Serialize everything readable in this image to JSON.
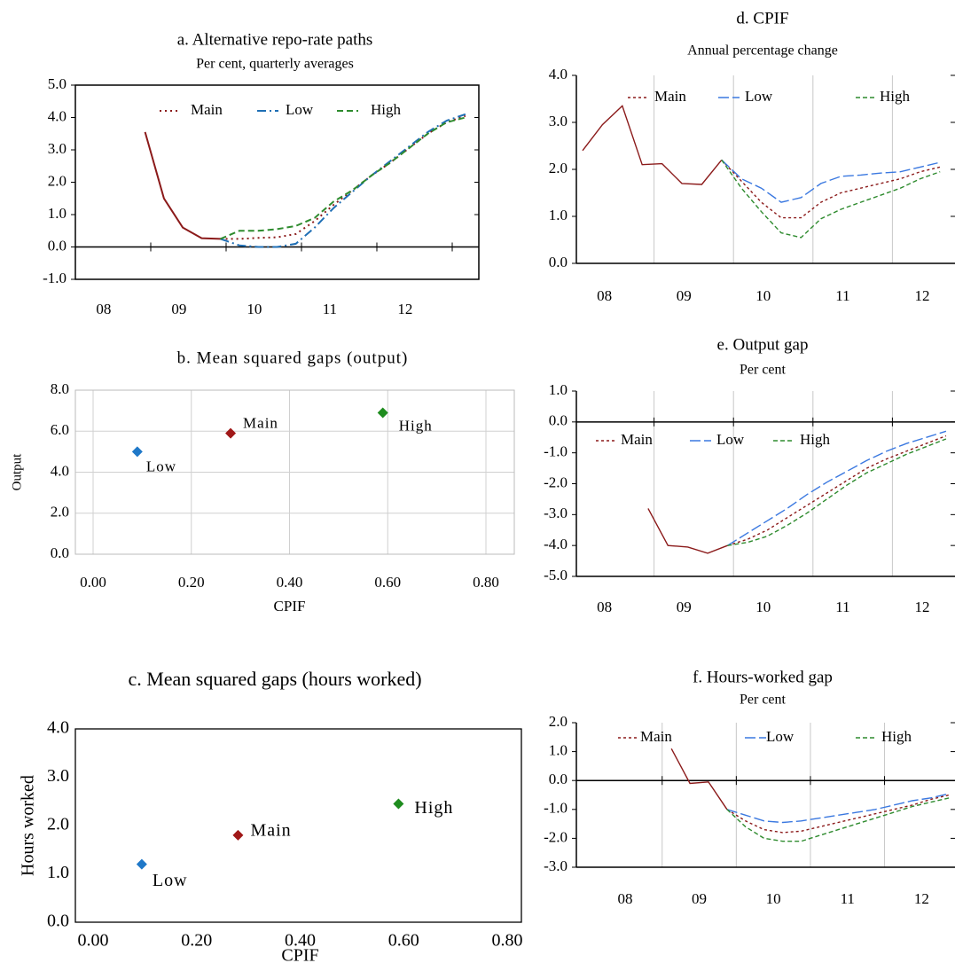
{
  "chart_data": [
    {
      "type": "line",
      "title": "a. Alternative repo-rate paths",
      "subtitle": "Per cent, quarterly averages",
      "categories": [
        null,
        "08",
        null,
        null,
        null,
        "09",
        null,
        null,
        null,
        "10",
        null,
        null,
        null,
        "11",
        null,
        null,
        null,
        "12",
        null,
        null,
        null,
        null
      ],
      "series": [
        {
          "name": "Main",
          "color": "#8b1a1a",
          "values": [
            null,
            null,
            null,
            null,
            3.55,
            1.5,
            0.6,
            0.27,
            0.25,
            0.25,
            0.28,
            0.3,
            0.4,
            0.8,
            1.3,
            1.75,
            2.2,
            2.6,
            3.05,
            3.5,
            3.85,
            4.05
          ]
        },
        {
          "name": "Low",
          "color": "#1f6fb5",
          "values": [
            null,
            null,
            null,
            null,
            null,
            null,
            null,
            null,
            0.25,
            0.05,
            0.0,
            0.0,
            0.1,
            0.6,
            1.2,
            1.7,
            2.2,
            2.65,
            3.1,
            3.55,
            3.9,
            4.1
          ]
        },
        {
          "name": "High",
          "color": "#2e8b2e",
          "values": [
            null,
            null,
            null,
            null,
            null,
            null,
            null,
            null,
            0.25,
            0.5,
            0.5,
            0.55,
            0.65,
            0.9,
            1.4,
            1.75,
            2.2,
            2.6,
            3.05,
            3.5,
            3.85,
            4.0
          ]
        }
      ],
      "ylim": [
        -1,
        5
      ],
      "yticks": [
        {
          "value": -1,
          "label": "-1.0"
        },
        {
          "value": 0,
          "label": "0.0"
        },
        {
          "value": 1,
          "label": "1.0"
        },
        {
          "value": 2,
          "label": "2.0"
        },
        {
          "value": 3,
          "label": "3.0"
        },
        {
          "value": 4,
          "label": "4.0"
        },
        {
          "value": 5,
          "label": "5.0"
        }
      ],
      "zero_line": true,
      "grid": false
    },
    {
      "type": "scatter",
      "title": "b. Mean squared gaps (output)",
      "x_label": "CPIF",
      "y_label": "Output",
      "series": [
        {
          "name": "Low",
          "color": "#1f78c8",
          "x": [
            0.09
          ],
          "y": [
            5.0
          ]
        },
        {
          "name": "Main",
          "color": "#a01818",
          "x": [
            0.28
          ],
          "y": [
            5.9
          ]
        },
        {
          "name": "High",
          "color": "#1e8c1e",
          "x": [
            0.59
          ],
          "y": [
            6.9
          ]
        }
      ],
      "xlim": [
        0,
        0.8
      ],
      "ylim": [
        0,
        8
      ],
      "xticks": [
        {
          "value": 0,
          "label": "0.00"
        },
        {
          "value": 0.2,
          "label": "0.20"
        },
        {
          "value": 0.4,
          "label": "0.40"
        },
        {
          "value": 0.6,
          "label": "0.60"
        },
        {
          "value": 0.8,
          "label": "0.80"
        }
      ],
      "yticks": [
        {
          "value": 0,
          "label": "0.0"
        },
        {
          "value": 2,
          "label": "2.0"
        },
        {
          "value": 4,
          "label": "4.0"
        },
        {
          "value": 6,
          "label": "6.0"
        },
        {
          "value": 8,
          "label": "8.0"
        }
      ],
      "grid": true
    },
    {
      "type": "scatter",
      "title": "c. Mean squared gaps (hours worked)",
      "x_label": "CPIF",
      "y_label": "Hours worked",
      "series": [
        {
          "name": "Low",
          "color": "#1f78c8",
          "x": [
            0.094
          ],
          "y": [
            1.2
          ]
        },
        {
          "name": "Main",
          "color": "#a01818",
          "x": [
            0.28
          ],
          "y": [
            1.8
          ]
        },
        {
          "name": "High",
          "color": "#1e8c1e",
          "x": [
            0.59
          ],
          "y": [
            2.45
          ]
        }
      ],
      "xlim": [
        0,
        0.8
      ],
      "ylim": [
        0,
        4
      ],
      "xticks": [
        {
          "value": 0,
          "label": "0.00"
        },
        {
          "value": 0.2,
          "label": "0.20"
        },
        {
          "value": 0.4,
          "label": "0.40"
        },
        {
          "value": 0.6,
          "label": "0.60"
        },
        {
          "value": 0.8,
          "label": "0.80"
        }
      ],
      "yticks": [
        {
          "value": 0,
          "label": "0.0"
        },
        {
          "value": 1,
          "label": "1.0"
        },
        {
          "value": 2,
          "label": "2.0"
        },
        {
          "value": 3,
          "label": "3.0"
        },
        {
          "value": 4,
          "label": "4.0"
        }
      ],
      "grid": false
    },
    {
      "type": "line",
      "title": "d. CPIF",
      "subtitle": "Annual percentage change",
      "categories": [
        null,
        "08",
        null,
        null,
        null,
        "09",
        null,
        null,
        null,
        "10",
        null,
        null,
        null,
        "11",
        null,
        null,
        null,
        "12",
        null
      ],
      "series": [
        {
          "name": "Main",
          "color": "#8b1a1a",
          "values": [
            2.4,
            2.95,
            3.35,
            2.1,
            2.12,
            1.7,
            1.68,
            2.2,
            1.75,
            1.3,
            0.97,
            0.97,
            1.3,
            1.5,
            1.6,
            1.7,
            1.8,
            1.95,
            2.05
          ]
        },
        {
          "name": "Low",
          "color": "#3a78e0",
          "values": [
            null,
            null,
            null,
            null,
            null,
            null,
            null,
            2.2,
            1.8,
            1.6,
            1.3,
            1.4,
            1.7,
            1.85,
            1.88,
            1.92,
            1.95,
            2.05,
            2.15
          ]
        },
        {
          "name": "High",
          "color": "#2e8b2e",
          "values": [
            null,
            null,
            null,
            null,
            null,
            null,
            null,
            2.2,
            1.6,
            1.1,
            0.65,
            0.55,
            0.95,
            1.15,
            1.3,
            1.45,
            1.6,
            1.8,
            1.95
          ]
        }
      ],
      "ylim": [
        0,
        4
      ],
      "yticks": [
        {
          "value": 0,
          "label": "0.0"
        },
        {
          "value": 1,
          "label": "1.0"
        },
        {
          "value": 2,
          "label": "2.0"
        },
        {
          "value": 3,
          "label": "3.0"
        },
        {
          "value": 4,
          "label": "4.0"
        }
      ],
      "zero_line": false,
      "grid": true
    },
    {
      "type": "line",
      "title": "e. Output gap",
      "subtitle": "Per cent",
      "categories": [
        null,
        "08",
        null,
        null,
        null,
        "09",
        null,
        null,
        null,
        "10",
        null,
        null,
        null,
        "11",
        null,
        null,
        null,
        "12",
        null
      ],
      "series": [
        {
          "name": "Main",
          "color": "#8b1a1a",
          "values": [
            null,
            null,
            null,
            -2.8,
            -4.0,
            -4.05,
            -4.25,
            -4.0,
            -3.8,
            -3.5,
            -3.1,
            -2.7,
            -2.3,
            -1.9,
            -1.5,
            -1.2,
            -0.95,
            -0.7,
            -0.45
          ]
        },
        {
          "name": "Low",
          "color": "#3a78e0",
          "values": [
            null,
            null,
            null,
            null,
            null,
            null,
            null,
            -4.0,
            -3.6,
            -3.2,
            -2.8,
            -2.35,
            -1.95,
            -1.6,
            -1.25,
            -0.95,
            -0.7,
            -0.5,
            -0.3
          ]
        },
        {
          "name": "High",
          "color": "#2e8b2e",
          "values": [
            null,
            null,
            null,
            null,
            null,
            null,
            null,
            -4.0,
            -3.9,
            -3.7,
            -3.35,
            -2.95,
            -2.5,
            -2.05,
            -1.65,
            -1.35,
            -1.05,
            -0.8,
            -0.55
          ]
        }
      ],
      "ylim": [
        -5,
        1
      ],
      "yticks": [
        {
          "value": -5,
          "label": "-5.0"
        },
        {
          "value": -4,
          "label": "-4.0"
        },
        {
          "value": -3,
          "label": "-3.0"
        },
        {
          "value": -2,
          "label": "-2.0"
        },
        {
          "value": -1,
          "label": "-1.0"
        },
        {
          "value": 0,
          "label": "0.0"
        },
        {
          "value": 1,
          "label": "1.0"
        }
      ],
      "zero_line": true,
      "grid": true
    },
    {
      "type": "line",
      "title": "f. Hours-worked gap",
      "subtitle": "Per cent",
      "categories": [
        null,
        "08",
        null,
        null,
        null,
        "09",
        null,
        null,
        null,
        "10",
        null,
        null,
        null,
        "11",
        null,
        null,
        null,
        "12",
        null,
        null
      ],
      "series": [
        {
          "name": "Main",
          "color": "#8b1a1a",
          "values": [
            null,
            null,
            null,
            null,
            1.1,
            -0.1,
            -0.05,
            -1.0,
            -1.4,
            -1.7,
            -1.8,
            -1.75,
            -1.6,
            -1.45,
            -1.3,
            -1.15,
            -1.0,
            -0.85,
            -0.65,
            -0.5
          ]
        },
        {
          "name": "Low",
          "color": "#3a78e0",
          "values": [
            null,
            null,
            null,
            null,
            null,
            null,
            null,
            -1.0,
            -1.2,
            -1.4,
            -1.45,
            -1.4,
            -1.3,
            -1.2,
            -1.1,
            -1.0,
            -0.85,
            -0.7,
            -0.6,
            -0.45
          ]
        },
        {
          "name": "High",
          "color": "#2e8b2e",
          "values": [
            null,
            null,
            null,
            null,
            null,
            null,
            null,
            -1.0,
            -1.6,
            -2.0,
            -2.1,
            -2.1,
            -1.9,
            -1.7,
            -1.5,
            -1.3,
            -1.1,
            -0.9,
            -0.75,
            -0.6
          ]
        }
      ],
      "ylim": [
        -3,
        2
      ],
      "yticks": [
        {
          "value": -3,
          "label": "-3.0"
        },
        {
          "value": -2,
          "label": "-2.0"
        },
        {
          "value": -1,
          "label": "-1.0"
        },
        {
          "value": 0,
          "label": "0.0"
        },
        {
          "value": 1,
          "label": "1.0"
        },
        {
          "value": 2,
          "label": "2.0"
        }
      ],
      "zero_line": true,
      "grid": true
    }
  ]
}
